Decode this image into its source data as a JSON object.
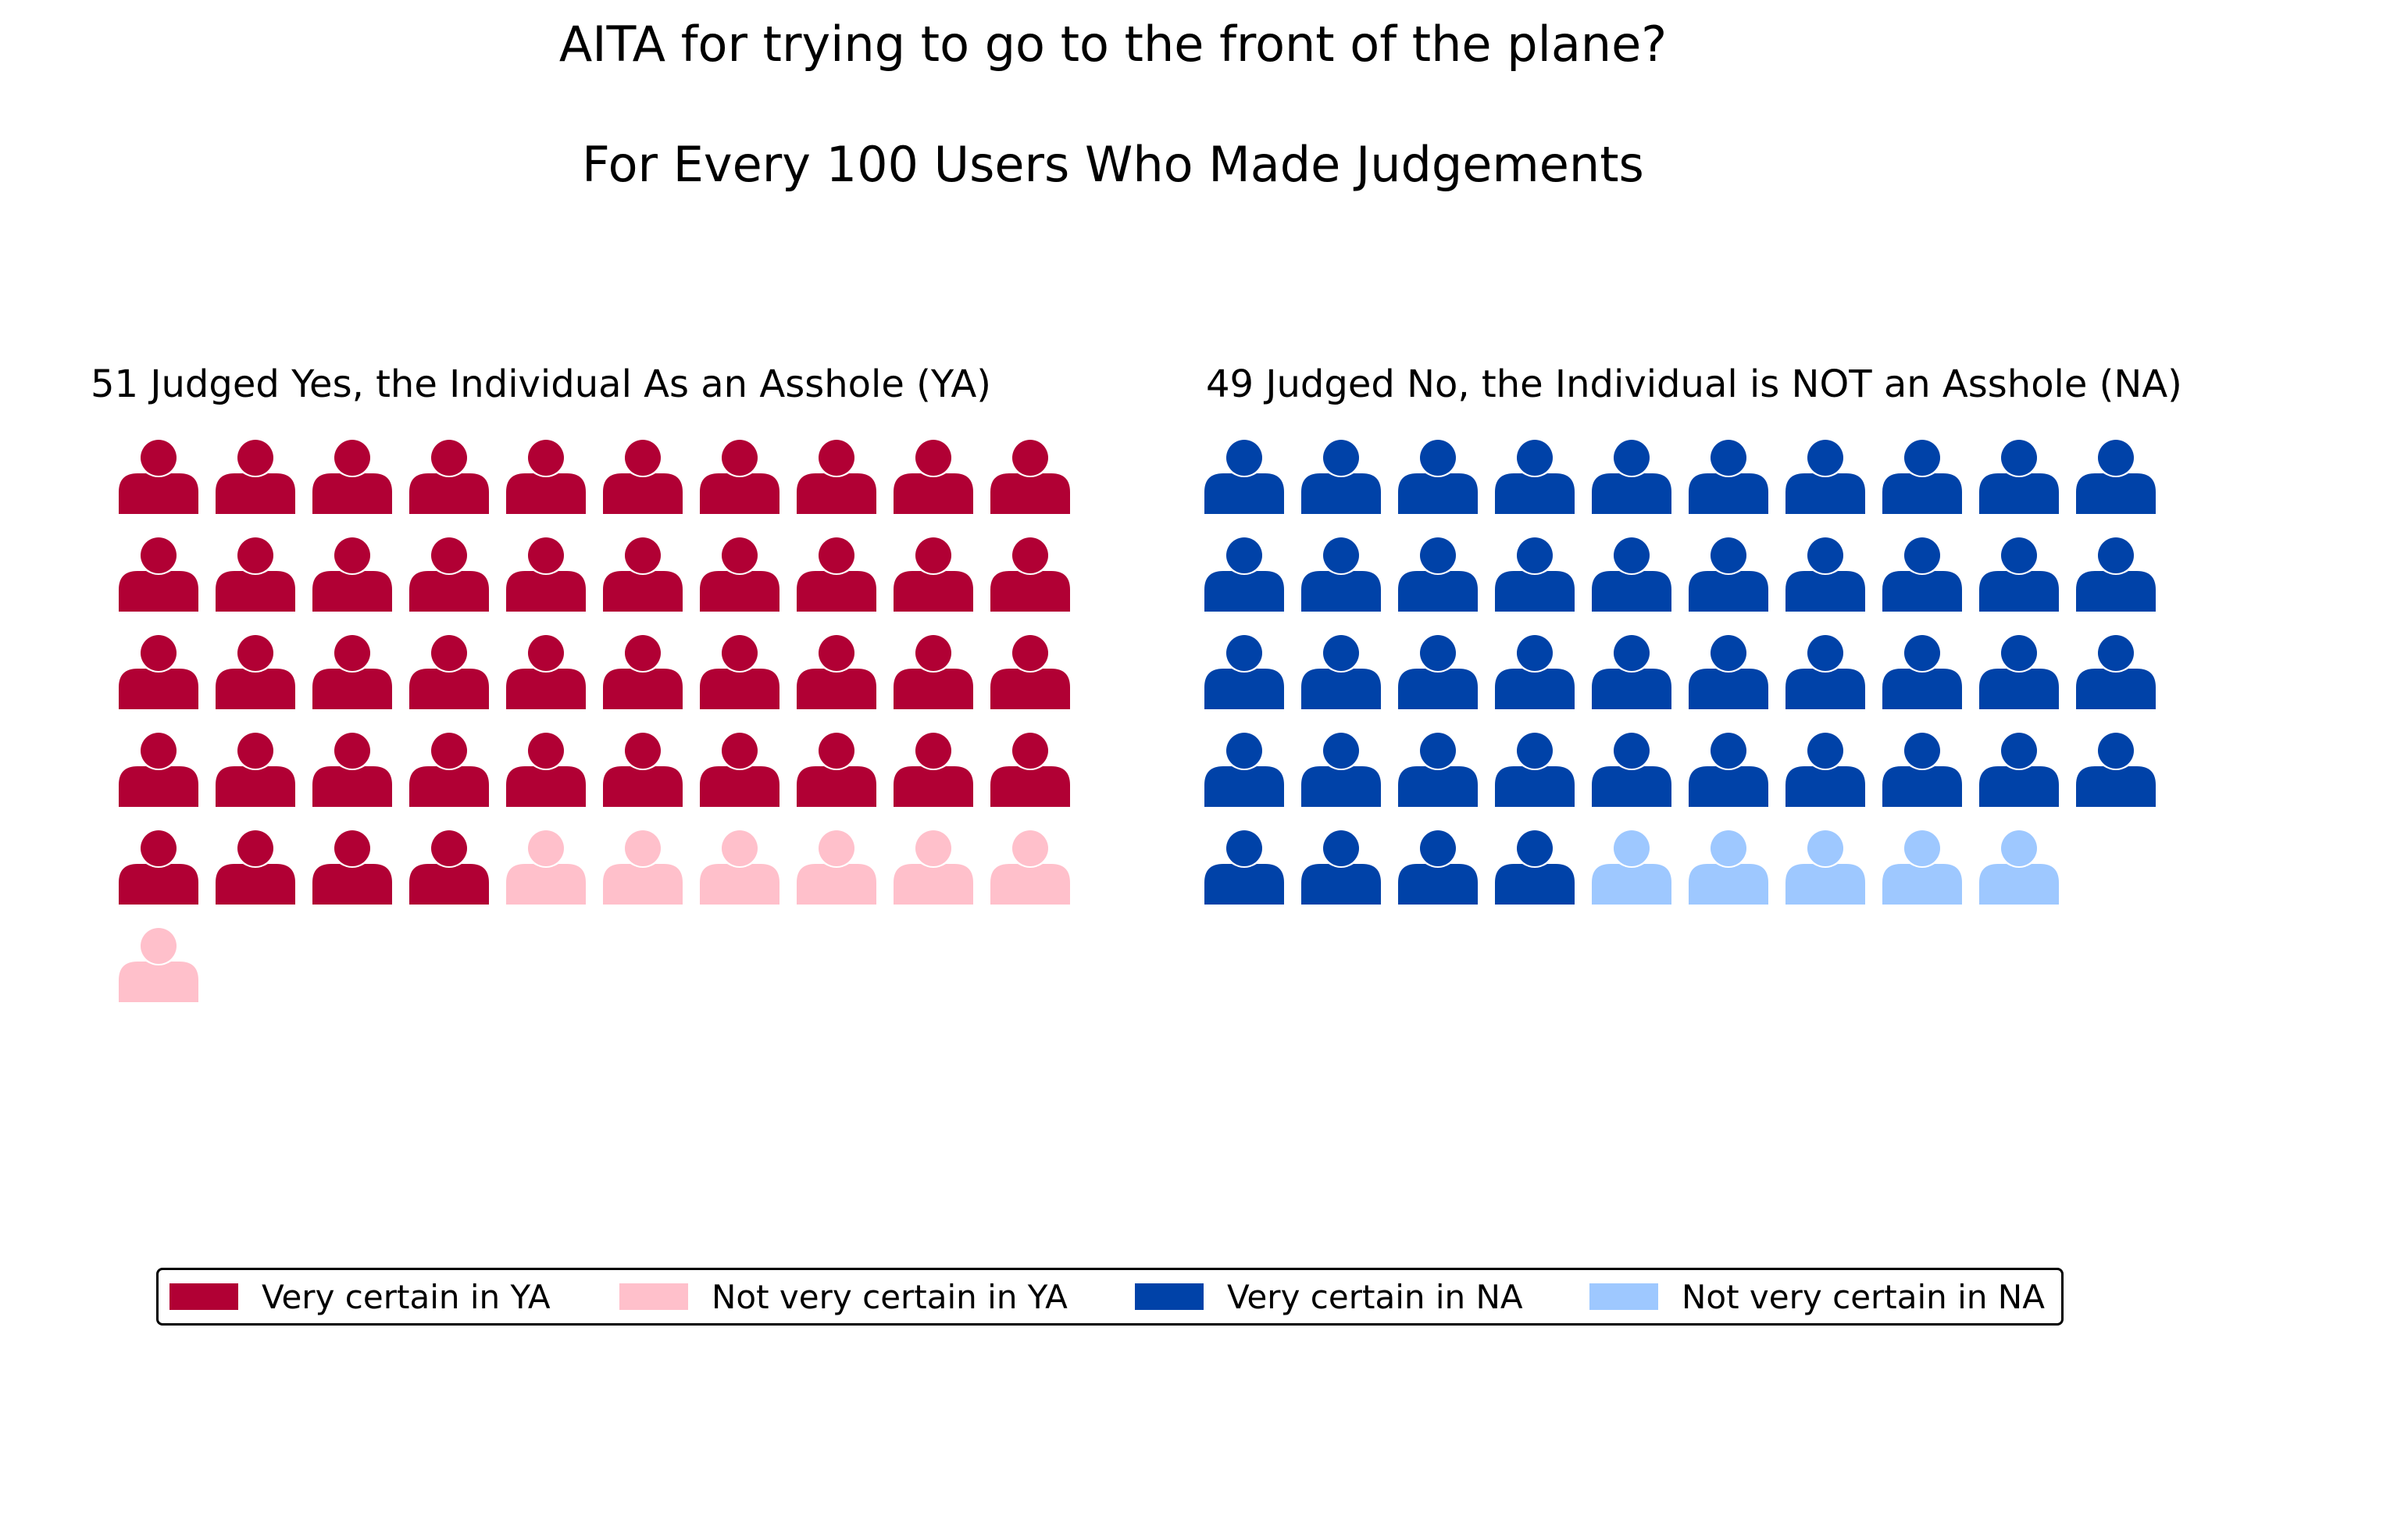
{
  "chart_data": {
    "type": "waffle",
    "title": "AITA for trying to go to the front of the plane?",
    "subtitle": "For Every 100 Users Who Made Judgements",
    "panels": [
      {
        "label": "51 Judged Yes, the Individual As an Asshole (YA)",
        "total": 51,
        "segments": [
          {
            "name": "Very certain in YA",
            "count": 44,
            "color": "#b10034"
          },
          {
            "name": "Not very certain in YA",
            "count": 7,
            "color": "#ffc0cb"
          }
        ]
      },
      {
        "label": "49 Judged No, the Individual is NOT an Asshole (NA)",
        "total": 49,
        "segments": [
          {
            "name": "Very certain in NA",
            "count": 44,
            "color": "#0042a8"
          },
          {
            "name": "Not very certain in NA",
            "count": 5,
            "color": "#9ec8ff"
          }
        ]
      }
    ],
    "icon": "person-icon",
    "columns": 10,
    "legend": {
      "placement": "bottom",
      "entries": [
        {
          "label": "Very certain in YA",
          "color": "#b10034"
        },
        {
          "label": "Not very certain in YA",
          "color": "#ffc0cb"
        },
        {
          "label": "Very certain in NA",
          "color": "#0042a8"
        },
        {
          "label": "Not very certain in NA",
          "color": "#9ec8ff"
        }
      ]
    }
  }
}
